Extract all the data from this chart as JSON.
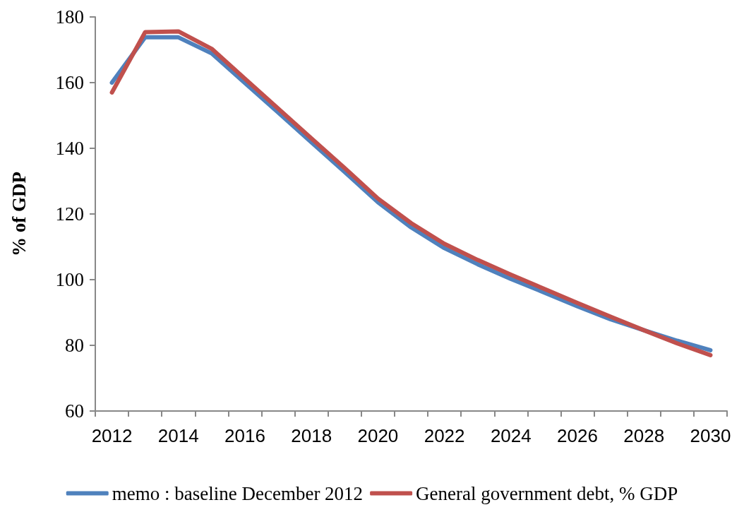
{
  "chart_data": {
    "type": "line",
    "ylabel": "% of GDP",
    "categories": [
      "2012",
      null,
      "2014",
      null,
      "2016",
      null,
      "2018",
      null,
      "2020",
      null,
      "2022",
      null,
      "2024",
      null,
      "2026",
      null,
      "2028",
      null,
      "2030"
    ],
    "series": [
      {
        "name": "memo : baseline December 2012",
        "color": "#4f81bd",
        "values": [
          160,
          173.8,
          173.8,
          168.9,
          159.9,
          150.9,
          141.8,
          132.8,
          123.6,
          115.9,
          109.6,
          104.7,
          100.2,
          96.1,
          91.9,
          87.9,
          84.6,
          81.4,
          78.5
        ]
      },
      {
        "name": "General government debt, % GDP",
        "color": "#c0504d",
        "values": [
          157,
          175.4,
          175.6,
          170.3,
          161.2,
          152.1,
          143,
          134,
          124.7,
          117.2,
          110.9,
          106,
          101.5,
          97.2,
          92.9,
          88.7,
          84.6,
          80.6,
          77
        ]
      }
    ],
    "ylim": [
      60,
      180
    ],
    "yticks": [
      60,
      80,
      100,
      120,
      140,
      160,
      180
    ],
    "grid": false,
    "legend": "bottom",
    "marker": "none",
    "line_style": "solid"
  }
}
